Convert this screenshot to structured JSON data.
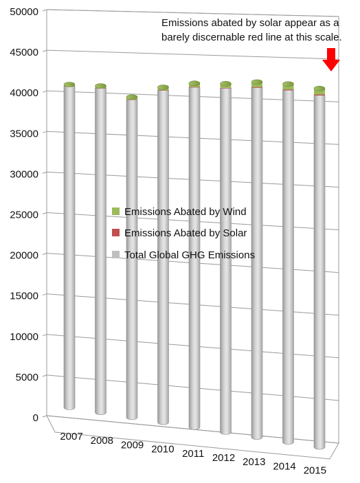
{
  "chart_data": {
    "type": "bar",
    "categories": [
      "2007",
      "2008",
      "2009",
      "2010",
      "2011",
      "2012",
      "2013",
      "2014",
      "2015"
    ],
    "series": [
      {
        "name": "Emissions Abated by Wind",
        "color": "#9bbb59",
        "values": [
          200,
          250,
          300,
          350,
          450,
          500,
          600,
          650,
          700
        ]
      },
      {
        "name": "Emissions Abated by Solar",
        "color": "#c0504d",
        "values": [
          10,
          15,
          20,
          25,
          40,
          60,
          80,
          100,
          120
        ]
      },
      {
        "name": "Total Global GHG Emissions",
        "color": "#bfbfbf",
        "values": [
          40500,
          40600,
          39500,
          41000,
          41700,
          41900,
          42300,
          42300,
          42000
        ]
      }
    ],
    "yticks": [
      "0",
      "5000",
      "10000",
      "15000",
      "20000",
      "25000",
      "30000",
      "35000",
      "40000",
      "45000",
      "50000"
    ],
    "ylim": [
      0,
      50000
    ],
    "grid": true,
    "legend_position": "center-left",
    "annotation": {
      "line1": "Emissions abated by solar appear as a",
      "line2": "barely discernable red line at this scale.",
      "arrow_color": "#ff0000"
    }
  }
}
